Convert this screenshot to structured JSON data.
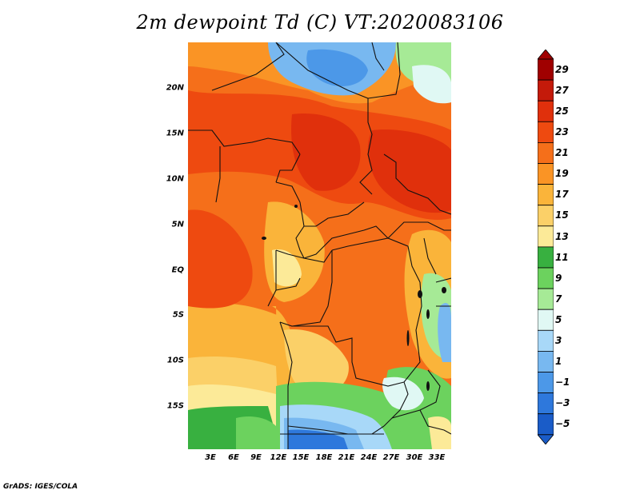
{
  "title": "2m dewpoint Td (C) VT:2020083106",
  "y_axis_labels": [
    "20N",
    "15N",
    "10N",
    "5N",
    "EQ",
    "5S",
    "10S",
    "15S"
  ],
  "x_axis_labels": [
    "3E",
    "6E",
    "9E",
    "12E",
    "15E",
    "18E",
    "21E",
    "24E",
    "27E",
    "30E",
    "33E"
  ],
  "colorbar": {
    "labels": [
      "29",
      "27",
      "25",
      "23",
      "21",
      "19",
      "17",
      "15",
      "13",
      "11",
      "9",
      "7",
      "5",
      "3",
      "1",
      "−1",
      "−3",
      "−5"
    ],
    "colors": [
      "#a00000",
      "#c41a0a",
      "#e0300c",
      "#ee4a10",
      "#f56f1a",
      "#fa9425",
      "#fab43a",
      "#fbd068",
      "#fcea98",
      "#38b040",
      "#6cd25e",
      "#a6ea96",
      "#e0f8f4",
      "#a8d8f8",
      "#78b8f0",
      "#4c98e8",
      "#2e78dc",
      "#1a5cc8"
    ]
  },
  "footer": "GrADS: IGES/COLA"
}
